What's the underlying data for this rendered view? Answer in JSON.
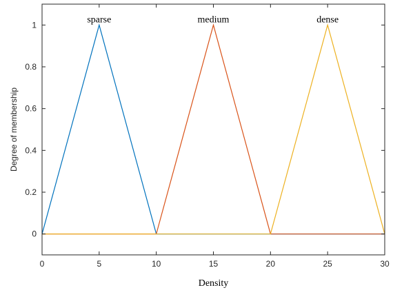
{
  "chart_data": {
    "type": "line",
    "title": "",
    "xlabel": "Density",
    "ylabel": "Degree of membership",
    "xlim": [
      0,
      30
    ],
    "ylim": [
      -0.1,
      1.1
    ],
    "xticks": [
      0,
      5,
      10,
      15,
      20,
      25,
      30
    ],
    "yticks": [
      0,
      0.2,
      0.4,
      0.6,
      0.8,
      1
    ],
    "xtick_labels": [
      "0",
      "5",
      "10",
      "15",
      "20",
      "25",
      "30"
    ],
    "ytick_labels": [
      "0",
      "0.2",
      "0.4",
      "0.6",
      "0.8",
      "1"
    ],
    "grid": false,
    "series": [
      {
        "name": "sparse",
        "color": "#0072BD",
        "x": [
          0,
          5,
          10,
          30
        ],
        "y": [
          0,
          1,
          0,
          0
        ]
      },
      {
        "name": "medium",
        "color": "#D95319",
        "x": [
          0,
          10,
          15,
          20,
          30
        ],
        "y": [
          0,
          0,
          1,
          0,
          0
        ]
      },
      {
        "name": "dense",
        "color": "#EDB120",
        "x": [
          0,
          20,
          25,
          30
        ],
        "y": [
          0,
          0,
          1,
          0
        ]
      }
    ]
  }
}
